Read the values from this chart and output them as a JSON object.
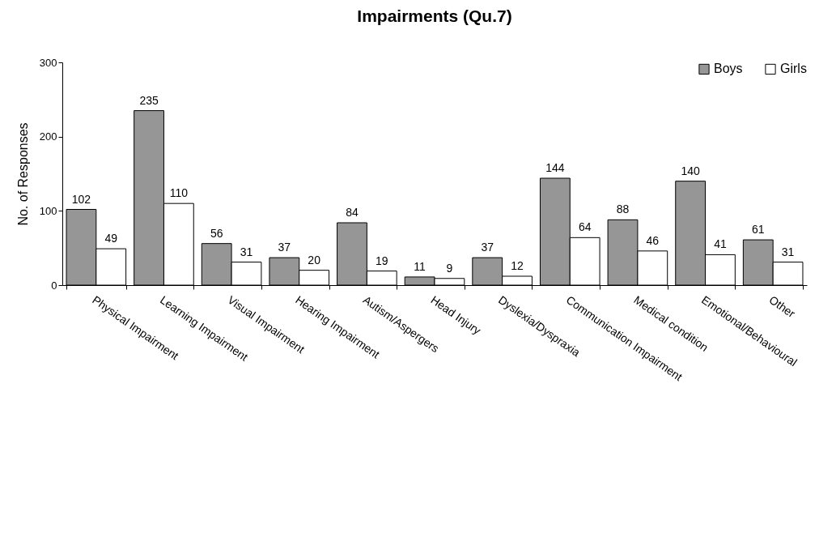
{
  "chart_data": {
    "type": "bar",
    "title": "Impairments (Qu.7)",
    "ylabel": "No. of Responses",
    "categories": [
      "Physical Impairment",
      "Learning Impairment",
      "Visual Impairment",
      "Hearing Impairment",
      "Autism/Aspergers",
      "Head Injury",
      "Dyslexia/Dyspraxia",
      "Communication Impairment",
      "Medical condition",
      "Emotional/Behavioural",
      "Other"
    ],
    "series": [
      {
        "name": "Boys",
        "color": "#969696",
        "values": [
          102,
          235,
          56,
          37,
          84,
          11,
          37,
          144,
          88,
          140,
          61
        ]
      },
      {
        "name": "Girls",
        "color": "#ffffff",
        "values": [
          49,
          110,
          31,
          20,
          19,
          9,
          12,
          64,
          46,
          41,
          31
        ]
      }
    ],
    "ylim": [
      0,
      300
    ],
    "yticks": [
      0,
      100,
      200,
      300
    ],
    "grid": false,
    "legend": "top right",
    "data_labels": true
  }
}
